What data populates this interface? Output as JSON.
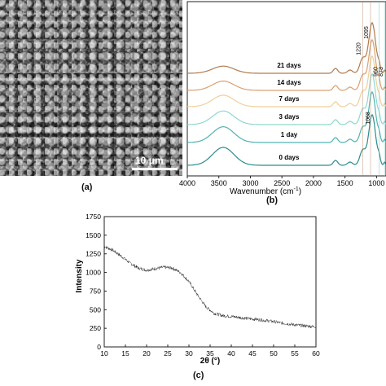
{
  "panel_labels": {
    "a": "(a)",
    "b": "(b)",
    "c": "(c)"
  },
  "sem": {
    "scale_label": "10 μm"
  },
  "chart_data": [
    {
      "type": "line",
      "xlabel": "Wavenumber (cm",
      "xlabel_sup": "-1",
      "xlabel_end": ")",
      "xlim": [
        4000,
        850
      ],
      "xticks": [
        4000,
        3500,
        3000,
        2500,
        2000,
        1500,
        1000
      ],
      "peak_labels": [
        "1220",
        "1095",
        "960",
        "873",
        "1068"
      ],
      "series": [
        {
          "name": "0 days",
          "color": "#2e8b8b"
        },
        {
          "name": "1 day",
          "color": "#4fb3b0"
        },
        {
          "name": "3 days",
          "color": "#8fd6cf"
        },
        {
          "name": "7 days",
          "color": "#f0cf9a"
        },
        {
          "name": "14 days",
          "color": "#d9a070"
        },
        {
          "name": "21 days",
          "color": "#b07a4e"
        }
      ]
    },
    {
      "type": "line",
      "xlabel": "2θ (°)",
      "ylabel": "Intensity",
      "xlim": [
        10,
        60
      ],
      "ylim": [
        0,
        1750
      ],
      "xticks": [
        10,
        15,
        20,
        25,
        30,
        35,
        40,
        45,
        50,
        55,
        60
      ],
      "yticks": [
        0,
        250,
        500,
        750,
        1000,
        1250,
        1500,
        1750
      ],
      "x": [
        10,
        12,
        14,
        16,
        18,
        20,
        22,
        24,
        26,
        28,
        30,
        32,
        34,
        36,
        38,
        40,
        42,
        44,
        46,
        48,
        50,
        52,
        54,
        56,
        58,
        60
      ],
      "y": [
        1350,
        1300,
        1220,
        1130,
        1060,
        1030,
        1050,
        1070,
        1060,
        1000,
        880,
        700,
        540,
        450,
        420,
        410,
        395,
        380,
        370,
        355,
        340,
        320,
        305,
        290,
        280,
        270
      ]
    }
  ]
}
